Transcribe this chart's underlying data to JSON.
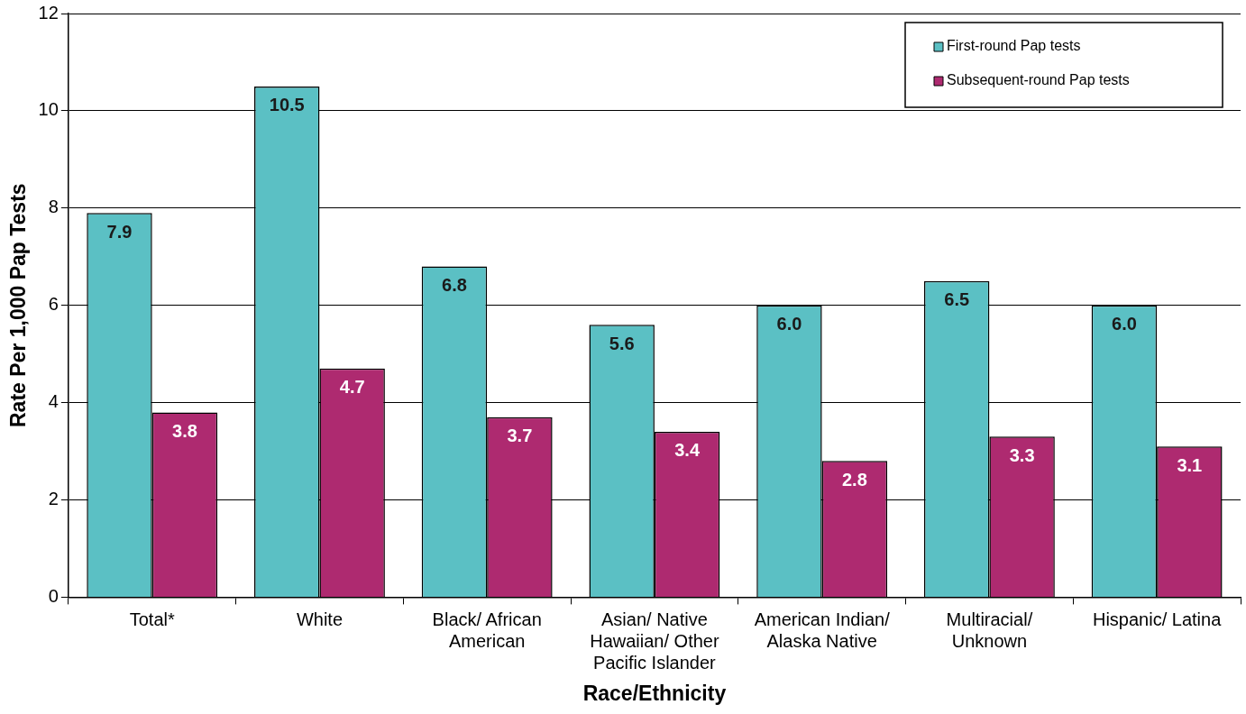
{
  "chart_data": {
    "type": "bar",
    "xlabel": "Race/Ethnicity",
    "ylabel": "Rate Per 1,000 Pap Tests",
    "categories": [
      "Total*",
      "White",
      "Black/ African American",
      "Asian/ Native Hawaiian/ Other Pacific Islander",
      "American Indian/ Alaska Native",
      "Multiracial/ Unknown",
      "Hispanic/ Latina"
    ],
    "series": [
      {
        "name": "First-round Pap tests",
        "color": "#5bc0c4",
        "values": [
          7.9,
          10.5,
          6.8,
          5.6,
          6.0,
          6.5,
          6.0
        ],
        "value_labels": [
          "7.9",
          "10.5",
          "6.8",
          "5.6",
          "6.0",
          "6.5",
          "6.0"
        ]
      },
      {
        "name": "Subsequent-round Pap tests",
        "color": "#ae2a70",
        "values": [
          3.8,
          4.7,
          3.7,
          3.4,
          2.8,
          3.3,
          3.1
        ],
        "value_labels": [
          "3.8",
          "4.7",
          "3.7",
          "3.4",
          "2.8",
          "3.3",
          "3.1"
        ]
      }
    ],
    "ylim": [
      0,
      12
    ],
    "yticks": [
      0,
      2,
      4,
      6,
      8,
      10,
      12
    ],
    "grid": "y",
    "legend": "top right"
  }
}
